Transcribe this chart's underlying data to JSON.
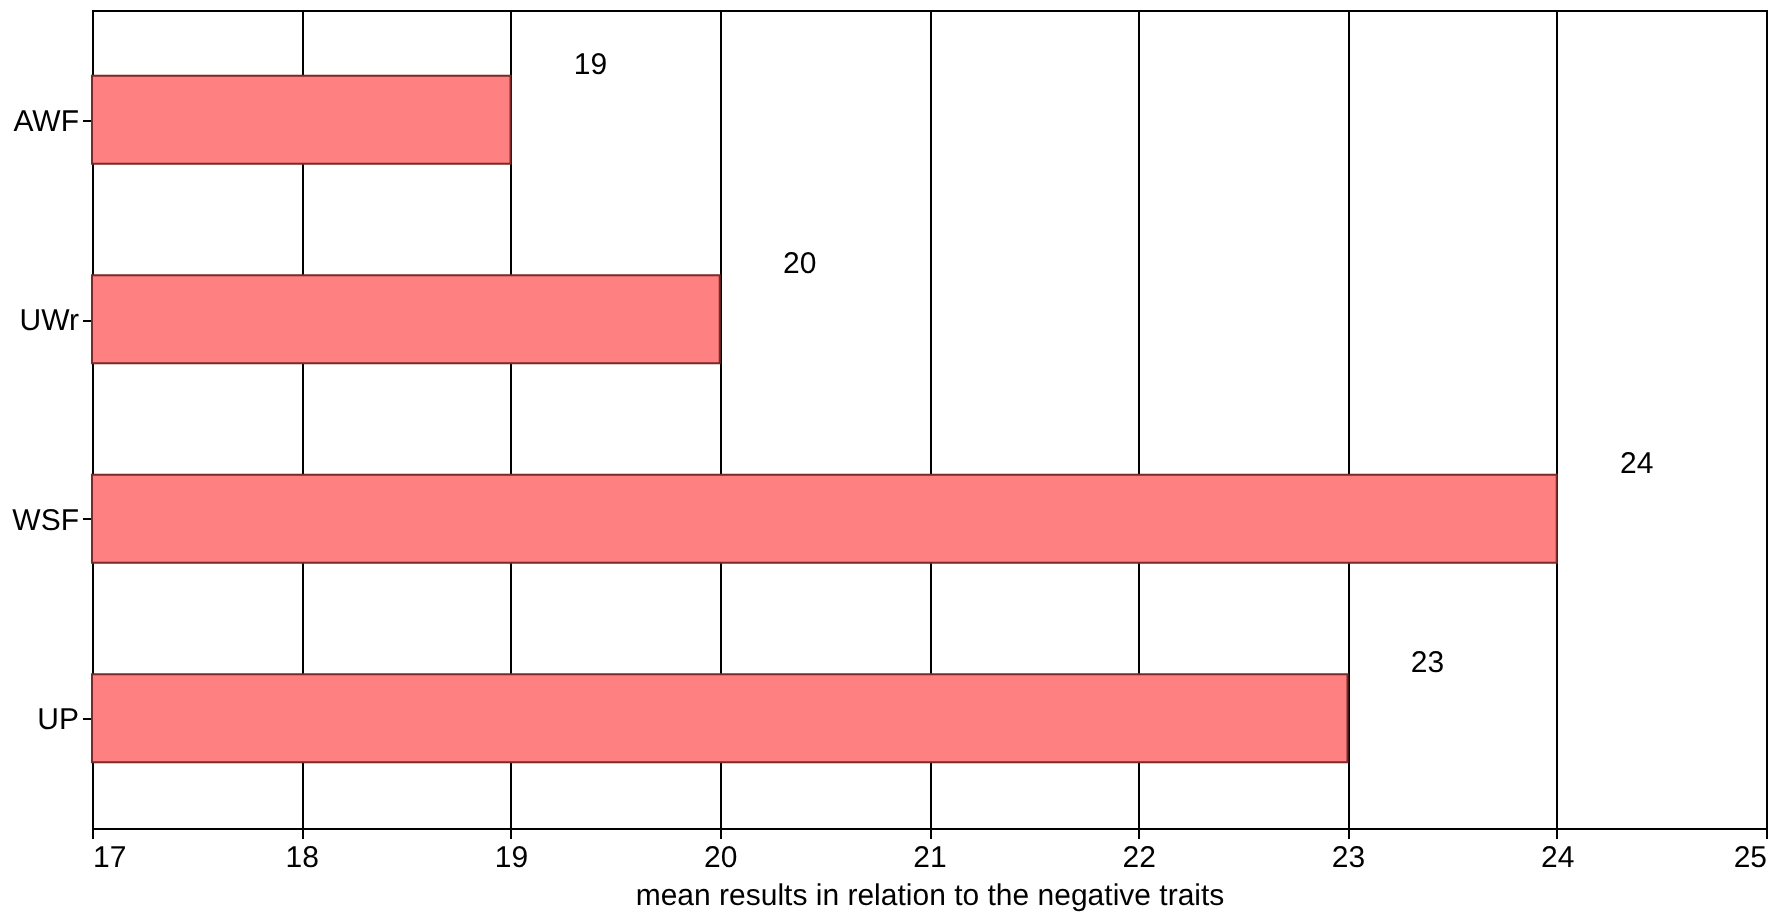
{
  "chart_data": {
    "type": "bar",
    "orientation": "horizontal",
    "xlabel": "mean results in relation to the negative traits",
    "categories": [
      "AWF",
      "UWr",
      "WSF",
      "UP"
    ],
    "values": [
      19,
      20,
      24,
      23
    ],
    "color": "#ff8080",
    "xlim": [
      17,
      25
    ],
    "xticks": [
      17,
      18,
      19,
      20,
      21,
      22,
      23,
      24,
      25
    ],
    "grid": "x",
    "data_labels": true
  }
}
